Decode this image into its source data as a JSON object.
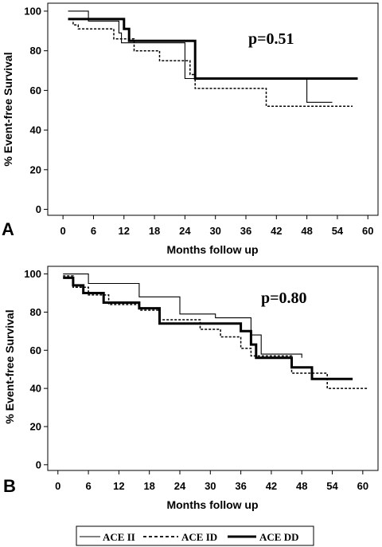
{
  "chart_data": [
    {
      "type": "line",
      "panel_label": "A",
      "xlabel": "Months follow up",
      "ylabel": "% Event-free Survival",
      "annotation": "p=0.51",
      "xticks": [
        0,
        6,
        12,
        18,
        24,
        30,
        36,
        42,
        48,
        54,
        60
      ],
      "yticks": [
        0,
        20,
        40,
        60,
        80,
        100
      ],
      "xlim": [
        -3,
        62
      ],
      "ylim": [
        -3,
        104
      ],
      "grid": false,
      "series": [
        {
          "name": "ACE II",
          "style": "thin",
          "points": [
            [
              1,
              100
            ],
            [
              5,
              100
            ],
            [
              5,
              95
            ],
            [
              11,
              95
            ],
            [
              11,
              89
            ],
            [
              11.5,
              89
            ],
            [
              11.5,
              84
            ],
            [
              24,
              84
            ],
            [
              24,
              66
            ],
            [
              48,
              66
            ],
            [
              48,
              54
            ],
            [
              53,
              54
            ]
          ]
        },
        {
          "name": "ACE ID",
          "style": "dashed",
          "points": [
            [
              1,
              96
            ],
            [
              2,
              96
            ],
            [
              2,
              93
            ],
            [
              3,
              93
            ],
            [
              3,
              91
            ],
            [
              10,
              91
            ],
            [
              10,
              86
            ],
            [
              14,
              86
            ],
            [
              14,
              80
            ],
            [
              19,
              80
            ],
            [
              19,
              75
            ],
            [
              25,
              75
            ],
            [
              25,
              68
            ],
            [
              26,
              68
            ],
            [
              26,
              61
            ],
            [
              40,
              61
            ],
            [
              40,
              52
            ],
            [
              57,
              52
            ]
          ]
        },
        {
          "name": "ACE DD",
          "style": "thick",
          "points": [
            [
              1,
              96
            ],
            [
              12,
              96
            ],
            [
              12,
              91
            ],
            [
              13,
              91
            ],
            [
              13,
              85
            ],
            [
              26,
              85
            ],
            [
              26,
              66
            ],
            [
              58,
              66
            ]
          ]
        }
      ]
    },
    {
      "type": "line",
      "panel_label": "B",
      "xlabel": "Months follow up",
      "ylabel": "% Event-free Survival",
      "annotation": "p=0.80",
      "xticks": [
        0,
        6,
        12,
        18,
        24,
        30,
        36,
        42,
        48,
        54,
        60
      ],
      "yticks": [
        0,
        20,
        40,
        60,
        80,
        100
      ],
      "xlim": [
        -2,
        63
      ],
      "ylim": [
        -3,
        104
      ],
      "grid": false,
      "series": [
        {
          "name": "ACE II",
          "style": "thin",
          "points": [
            [
              1,
              100
            ],
            [
              6,
              100
            ],
            [
              6,
              95
            ],
            [
              16,
              95
            ],
            [
              16,
              88
            ],
            [
              24,
              88
            ],
            [
              24,
              79
            ],
            [
              31,
              79
            ],
            [
              31,
              77
            ],
            [
              38,
              77
            ],
            [
              38,
              68
            ],
            [
              40,
              68
            ],
            [
              40,
              58
            ],
            [
              48,
              58
            ],
            [
              48,
              56
            ]
          ]
        },
        {
          "name": "ACE ID",
          "style": "dashed",
          "points": [
            [
              1,
              99
            ],
            [
              3,
              99
            ],
            [
              3,
              93
            ],
            [
              6,
              93
            ],
            [
              6,
              89
            ],
            [
              10,
              89
            ],
            [
              10,
              84
            ],
            [
              16,
              84
            ],
            [
              16,
              81
            ],
            [
              20,
              81
            ],
            [
              20,
              76
            ],
            [
              28,
              76
            ],
            [
              28,
              71
            ],
            [
              32,
              71
            ],
            [
              32,
              67
            ],
            [
              36,
              67
            ],
            [
              36,
              61
            ],
            [
              38,
              61
            ],
            [
              38,
              57
            ],
            [
              46,
              57
            ],
            [
              46,
              48
            ],
            [
              53,
              48
            ],
            [
              53,
              40
            ],
            [
              61,
              40
            ]
          ]
        },
        {
          "name": "ACE DD",
          "style": "thick",
          "points": [
            [
              1,
              98
            ],
            [
              3,
              98
            ],
            [
              3,
              94
            ],
            [
              5,
              94
            ],
            [
              5,
              90
            ],
            [
              9,
              90
            ],
            [
              9,
              85
            ],
            [
              16,
              85
            ],
            [
              16,
              82
            ],
            [
              20,
              82
            ],
            [
              20,
              74
            ],
            [
              36,
              74
            ],
            [
              36,
              70
            ],
            [
              38,
              70
            ],
            [
              38,
              63
            ],
            [
              39,
              63
            ],
            [
              39,
              56
            ],
            [
              46,
              56
            ],
            [
              46,
              51
            ],
            [
              50,
              51
            ],
            [
              50,
              45
            ],
            [
              58,
              45
            ]
          ]
        }
      ]
    }
  ],
  "legend": {
    "items": [
      {
        "label": "ACE II",
        "style": "thin"
      },
      {
        "label": "ACE ID",
        "style": "dashed"
      },
      {
        "label": "ACE DD",
        "style": "thick"
      }
    ]
  },
  "colors": {
    "line": "#000000",
    "background": "#ffffff"
  }
}
